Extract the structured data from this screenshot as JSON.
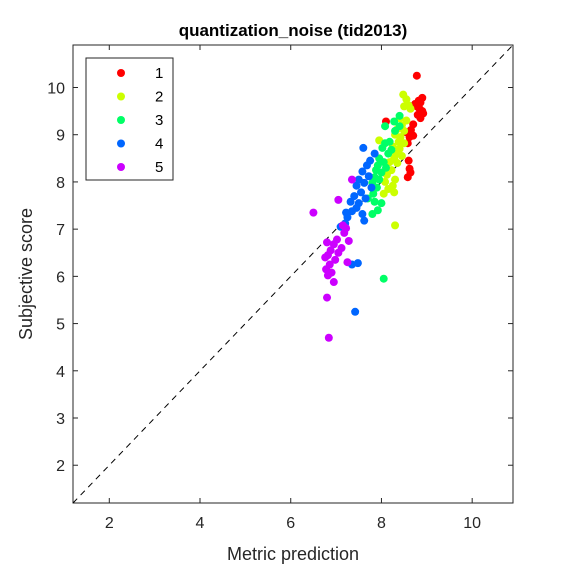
{
  "chart_data": {
    "type": "scatter",
    "title": "quantization_noise (tid2013)",
    "xlabel": "Metric prediction",
    "ylabel": "Subjective score",
    "xlim": [
      1.2,
      10.9
    ],
    "ylim": [
      1.2,
      10.9
    ],
    "xticks": [
      2,
      4,
      6,
      8,
      10
    ],
    "yticks": [
      2,
      3,
      4,
      5,
      6,
      7,
      8,
      9,
      10
    ],
    "grid": false,
    "legend_position": "top-left",
    "diagonal": "dashed y=x reference line",
    "series": [
      {
        "name": "1",
        "color": "#ff0000",
        "points": [
          [
            8.78,
            10.25
          ],
          [
            8.82,
            9.72
          ],
          [
            8.86,
            9.68
          ],
          [
            8.9,
            9.78
          ],
          [
            8.78,
            9.6
          ],
          [
            8.74,
            9.65
          ],
          [
            8.84,
            9.55
          ],
          [
            8.9,
            9.5
          ],
          [
            8.92,
            9.45
          ],
          [
            8.8,
            9.42
          ],
          [
            8.86,
            9.35
          ],
          [
            8.1,
            9.28
          ],
          [
            8.7,
            9.22
          ],
          [
            8.65,
            9.1
          ],
          [
            8.55,
            9.05
          ],
          [
            8.66,
            9.0
          ],
          [
            8.7,
            8.98
          ],
          [
            8.62,
            8.95
          ],
          [
            8.58,
            8.82
          ],
          [
            8.6,
            8.45
          ],
          [
            8.62,
            8.28
          ],
          [
            8.64,
            8.2
          ],
          [
            8.58,
            8.1
          ]
        ]
      },
      {
        "name": "2",
        "color": "#ccff00",
        "points": [
          [
            8.48,
            9.85
          ],
          [
            8.55,
            9.75
          ],
          [
            8.6,
            9.62
          ],
          [
            8.5,
            9.6
          ],
          [
            8.64,
            9.55
          ],
          [
            8.4,
            9.35
          ],
          [
            8.55,
            9.3
          ],
          [
            8.45,
            9.2
          ],
          [
            8.35,
            9.12
          ],
          [
            8.5,
            9.08
          ],
          [
            8.3,
            9.0
          ],
          [
            8.42,
            8.95
          ],
          [
            8.38,
            8.85
          ],
          [
            8.5,
            8.82
          ],
          [
            8.25,
            8.75
          ],
          [
            8.4,
            8.7
          ],
          [
            8.32,
            8.6
          ],
          [
            8.45,
            8.55
          ],
          [
            7.95,
            8.88
          ],
          [
            8.28,
            8.5
          ],
          [
            8.18,
            8.42
          ],
          [
            8.35,
            8.4
          ],
          [
            8.22,
            8.25
          ],
          [
            8.12,
            8.15
          ],
          [
            8.3,
            8.05
          ],
          [
            8.25,
            7.92
          ],
          [
            8.15,
            7.85
          ],
          [
            8.28,
            7.78
          ],
          [
            8.08,
            8.0
          ],
          [
            8.05,
            7.75
          ],
          [
            8.3,
            7.08
          ]
        ]
      },
      {
        "name": "3",
        "color": "#00ff66",
        "points": [
          [
            8.4,
            9.4
          ],
          [
            8.28,
            9.28
          ],
          [
            8.4,
            9.18
          ],
          [
            8.08,
            9.18
          ],
          [
            8.3,
            9.08
          ],
          [
            8.18,
            8.85
          ],
          [
            8.08,
            8.82
          ],
          [
            8.02,
            8.72
          ],
          [
            8.22,
            8.68
          ],
          [
            8.15,
            8.6
          ],
          [
            7.95,
            8.5
          ],
          [
            8.05,
            8.42
          ],
          [
            7.92,
            8.35
          ],
          [
            8.1,
            8.3
          ],
          [
            7.88,
            8.25
          ],
          [
            8.0,
            8.2
          ],
          [
            7.85,
            8.1
          ],
          [
            7.95,
            8.05
          ],
          [
            7.8,
            7.98
          ],
          [
            7.9,
            7.88
          ],
          [
            7.82,
            7.75
          ],
          [
            7.7,
            7.65
          ],
          [
            7.85,
            7.58
          ],
          [
            8.0,
            7.55
          ],
          [
            7.92,
            7.4
          ],
          [
            7.8,
            7.32
          ],
          [
            8.05,
            5.95
          ]
        ]
      },
      {
        "name": "4",
        "color": "#0066ff",
        "points": [
          [
            7.6,
            8.72
          ],
          [
            7.85,
            8.6
          ],
          [
            7.75,
            8.45
          ],
          [
            7.68,
            8.35
          ],
          [
            7.58,
            8.22
          ],
          [
            7.72,
            8.12
          ],
          [
            7.5,
            8.05
          ],
          [
            7.62,
            7.98
          ],
          [
            7.45,
            7.92
          ],
          [
            7.78,
            7.88
          ],
          [
            7.55,
            7.78
          ],
          [
            7.4,
            7.7
          ],
          [
            7.65,
            7.65
          ],
          [
            7.32,
            7.58
          ],
          [
            7.5,
            7.55
          ],
          [
            7.45,
            7.45
          ],
          [
            7.35,
            7.38
          ],
          [
            7.22,
            7.35
          ],
          [
            7.58,
            7.32
          ],
          [
            7.25,
            7.25
          ],
          [
            7.62,
            7.18
          ],
          [
            7.2,
            7.12
          ],
          [
            7.1,
            7.05
          ],
          [
            7.48,
            6.28
          ],
          [
            7.35,
            6.25
          ],
          [
            7.42,
            5.25
          ]
        ]
      },
      {
        "name": "5",
        "color": "#cc00ff",
        "points": [
          [
            7.35,
            8.05
          ],
          [
            7.05,
            7.62
          ],
          [
            6.5,
            7.35
          ],
          [
            7.15,
            7.08
          ],
          [
            7.22,
            7.02
          ],
          [
            7.18,
            6.92
          ],
          [
            7.02,
            6.78
          ],
          [
            7.28,
            6.75
          ],
          [
            6.8,
            6.72
          ],
          [
            6.95,
            6.68
          ],
          [
            7.12,
            6.6
          ],
          [
            6.88,
            6.55
          ],
          [
            7.05,
            6.5
          ],
          [
            6.82,
            6.45
          ],
          [
            6.76,
            6.4
          ],
          [
            6.98,
            6.35
          ],
          [
            7.25,
            6.3
          ],
          [
            6.86,
            6.25
          ],
          [
            6.78,
            6.15
          ],
          [
            6.9,
            6.08
          ],
          [
            6.82,
            6.02
          ],
          [
            6.95,
            5.88
          ],
          [
            6.8,
            5.55
          ],
          [
            6.84,
            4.7
          ]
        ]
      }
    ]
  }
}
